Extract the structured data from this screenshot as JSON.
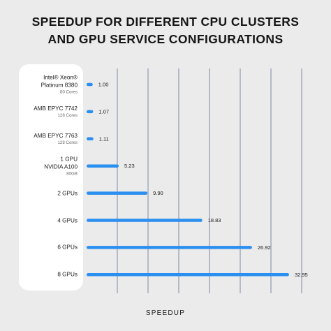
{
  "title_lines": [
    "SPEEDUP FOR DIFFERENT CPU CLUSTERS",
    "AND GPU SERVICE CONFIGURATIONS"
  ],
  "colors": {
    "bar": "#2b8ff0",
    "grid": "#7d8aa6",
    "panel": "#ffffff",
    "background": "#ebebeb"
  },
  "chart_data": {
    "type": "bar",
    "orientation": "horizontal",
    "title": "SPEEDUP FOR DIFFERENT CPU CLUSTERS AND GPU SERVICE CONFIGURATIONS",
    "xlabel": "SPEEDUP",
    "ylabel": "",
    "xlim": [
      0,
      35
    ],
    "grid": true,
    "categories": [
      {
        "lines": [
          "Intel® Xeon®",
          "Platinum 8380"
        ],
        "sub": "80 Cores"
      },
      {
        "lines": [
          "AMB EPYC 7742"
        ],
        "sub": "128 Cores"
      },
      {
        "lines": [
          "AMB EPYC 7763"
        ],
        "sub": "128 Cores"
      },
      {
        "lines": [
          "1 GPU",
          "NVIDIA A100"
        ],
        "sub": "80GB"
      },
      {
        "lines": [
          "2 GPUs"
        ],
        "sub": ""
      },
      {
        "lines": [
          "4 GPUs"
        ],
        "sub": ""
      },
      {
        "lines": [
          "6 GPUs"
        ],
        "sub": ""
      },
      {
        "lines": [
          "8 GPUs"
        ],
        "sub": ""
      }
    ],
    "values": [
      1.0,
      1.07,
      1.11,
      5.23,
      9.9,
      18.83,
      26.92,
      32.95
    ],
    "value_labels": [
      "1.00",
      "1.07",
      "1.11",
      "5.23",
      "9.90",
      "18.83",
      "26.92",
      "32.95"
    ]
  }
}
